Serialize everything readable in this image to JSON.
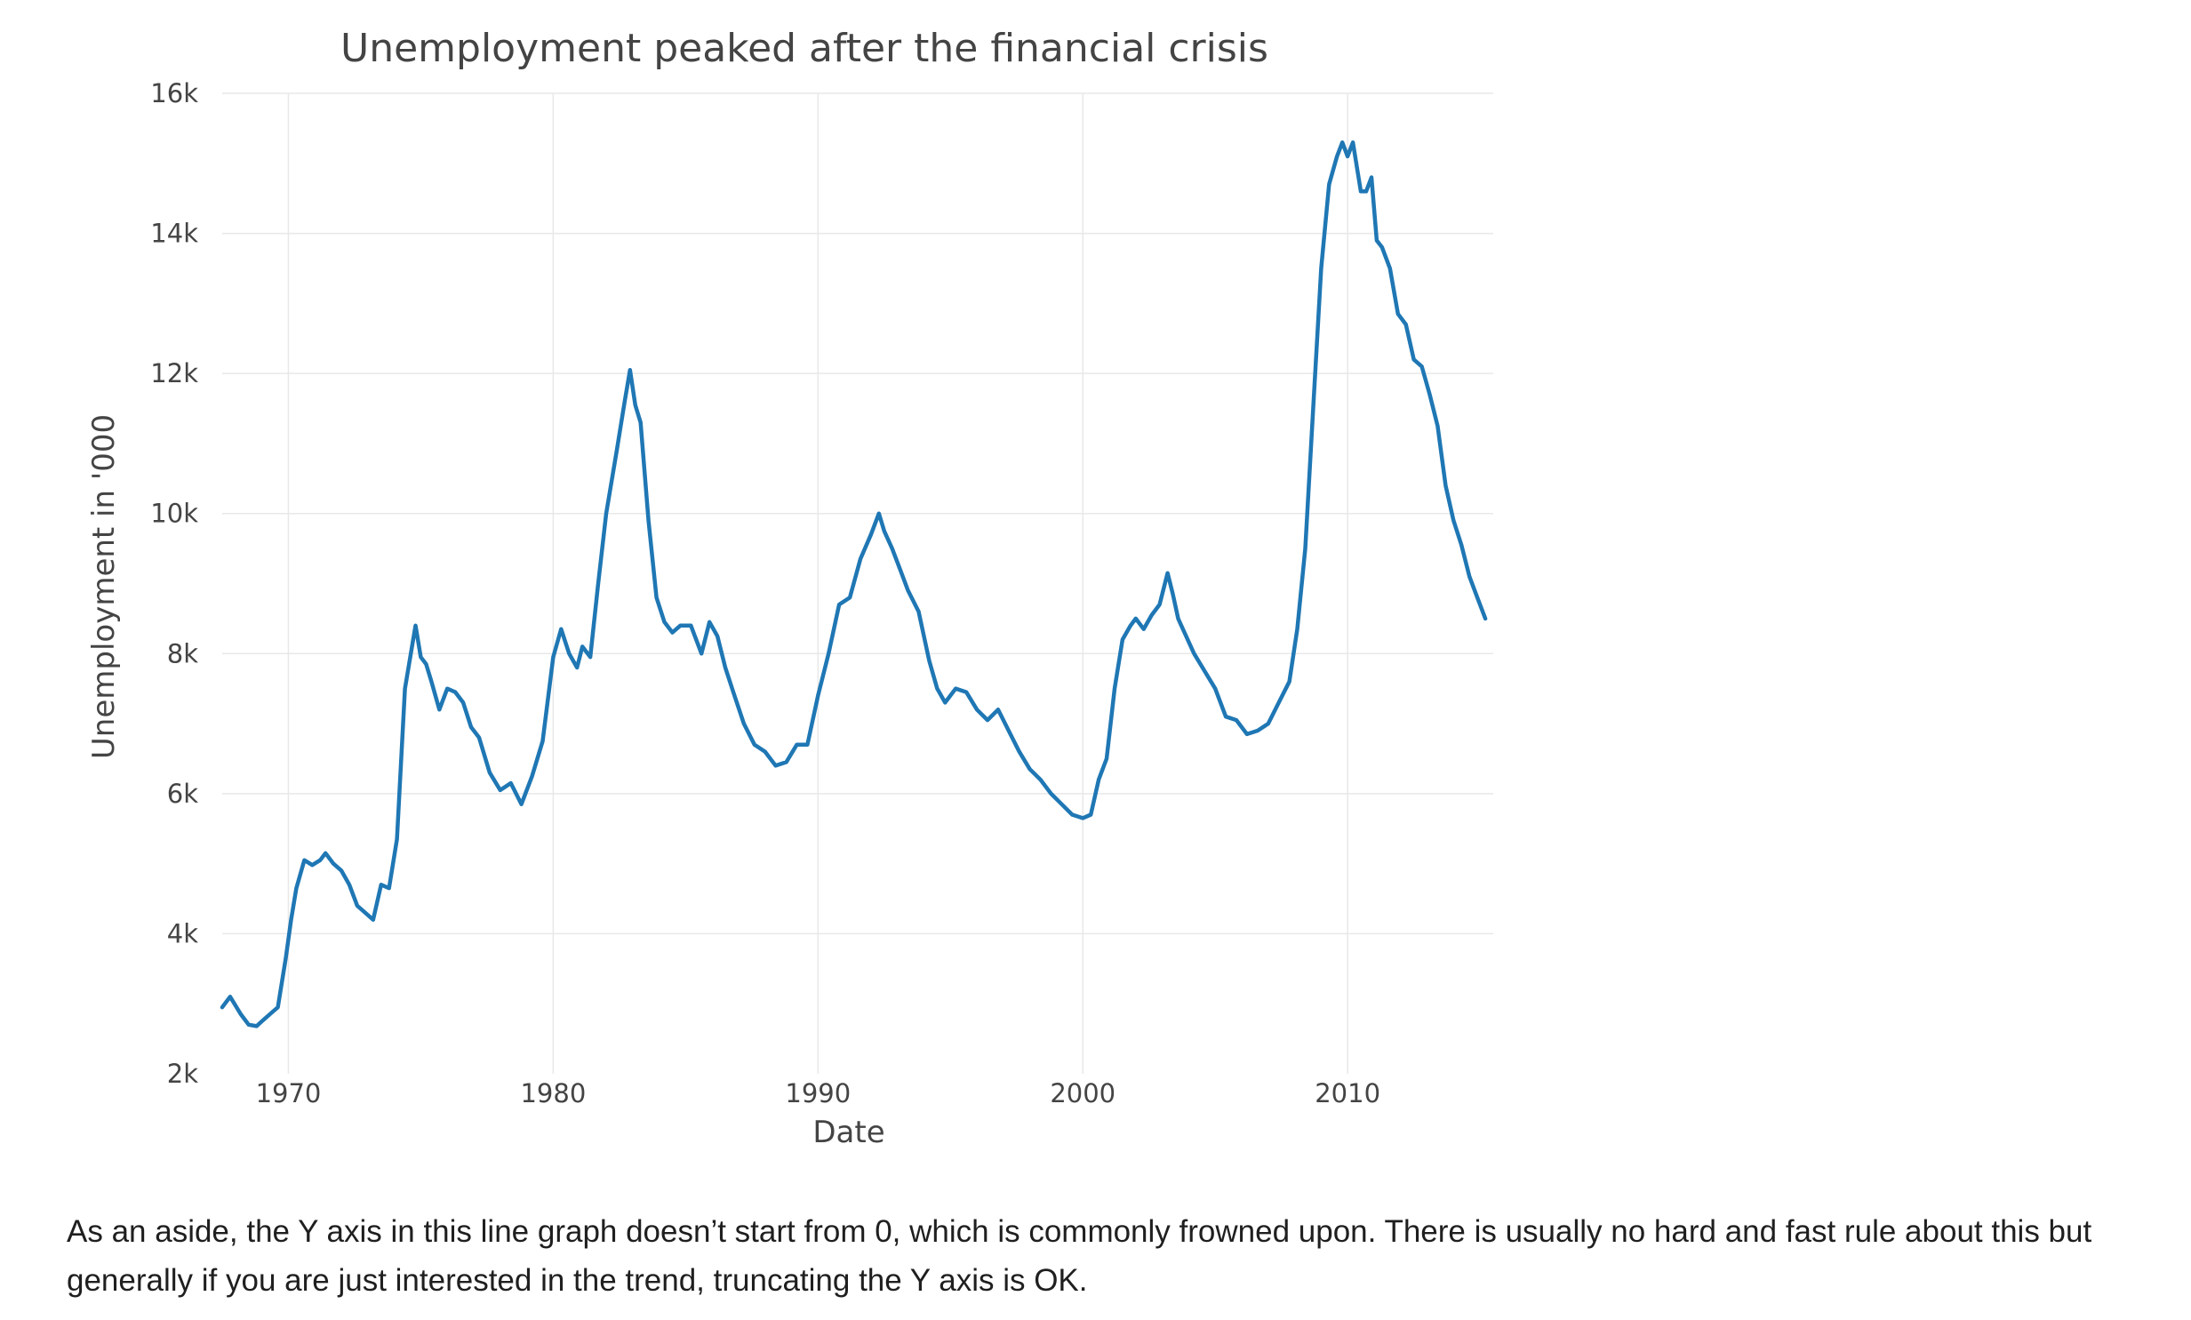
{
  "aside_text": "As an aside, the Y axis in this line graph doesn’t start from 0, which is commonly frowned upon. There is usually no hard and fast rule about this but generally if you are just interested in the trend, truncating the Y axis is OK.",
  "chart_data": {
    "type": "line",
    "title": "Unemployment peaked after the financial crisis",
    "xlabel": "Date",
    "ylabel": "Unemployment in '000",
    "xlim": [
      1967.5,
      2015.5
    ],
    "ylim": [
      2000,
      16000
    ],
    "xticks": [
      1970,
      1980,
      1990,
      2000,
      2010
    ],
    "xtick_labels": [
      "1970",
      "1980",
      "1990",
      "2000",
      "2010"
    ],
    "yticks": [
      2000,
      4000,
      6000,
      8000,
      10000,
      12000,
      14000,
      16000
    ],
    "ytick_labels": [
      "2k",
      "4k",
      "6k",
      "8k",
      "10k",
      "12k",
      "14k",
      "16k"
    ],
    "grid": true,
    "legend": "none",
    "line_color": "#1f77b4",
    "series": [
      {
        "x": [
          1967.5,
          1967.8,
          1968.2,
          1968.5,
          1968.8,
          1969.0,
          1969.3,
          1969.6,
          1969.9,
          1970.1,
          1970.3,
          1970.6,
          1970.9,
          1971.2,
          1971.4,
          1971.7,
          1972.0,
          1972.3,
          1972.6,
          1972.9,
          1973.2,
          1973.5,
          1973.8,
          1974.1,
          1974.4,
          1974.8,
          1975.0,
          1975.2,
          1975.4,
          1975.7,
          1976.0,
          1976.3,
          1976.6,
          1976.9,
          1977.2,
          1977.6,
          1978.0,
          1978.4,
          1978.8,
          1979.2,
          1979.6,
          1980.0,
          1980.3,
          1980.6,
          1980.9,
          1981.1,
          1981.4,
          1981.7,
          1982.0,
          1982.4,
          1982.7,
          1982.9,
          1983.1,
          1983.3,
          1983.6,
          1983.9,
          1984.2,
          1984.5,
          1984.8,
          1985.2,
          1985.6,
          1985.9,
          1986.2,
          1986.5,
          1986.8,
          1987.2,
          1987.6,
          1988.0,
          1988.4,
          1988.8,
          1989.2,
          1989.6,
          1990.0,
          1990.4,
          1990.8,
          1991.2,
          1991.6,
          1992.0,
          1992.3,
          1992.5,
          1992.8,
          1993.1,
          1993.4,
          1993.8,
          1994.2,
          1994.5,
          1994.8,
          1995.2,
          1995.6,
          1996.0,
          1996.4,
          1996.8,
          1997.2,
          1997.6,
          1998.0,
          1998.4,
          1998.8,
          1999.2,
          1999.6,
          2000.0,
          2000.3,
          2000.6,
          2000.9,
          2001.2,
          2001.5,
          2001.8,
          2002.0,
          2002.3,
          2002.6,
          2002.9,
          2003.2,
          2003.4,
          2003.6,
          2003.9,
          2004.2,
          2004.6,
          2005.0,
          2005.4,
          2005.8,
          2006.2,
          2006.6,
          2007.0,
          2007.4,
          2007.8,
          2008.1,
          2008.4,
          2008.7,
          2009.0,
          2009.3,
          2009.6,
          2009.8,
          2010.0,
          2010.2,
          2010.5,
          2010.7,
          2010.9,
          2011.1,
          2011.3,
          2011.6,
          2011.9,
          2012.2,
          2012.5,
          2012.8,
          2013.1,
          2013.4,
          2013.7,
          2014.0,
          2014.3,
          2014.6,
          2014.9,
          2015.2
        ],
        "y": [
          2950,
          3100,
          2850,
          2700,
          2680,
          2750,
          2850,
          2950,
          3650,
          4200,
          4650,
          5050,
          4980,
          5050,
          5150,
          5000,
          4900,
          4700,
          4400,
          4300,
          4200,
          4700,
          4650,
          5350,
          7500,
          8400,
          7950,
          7850,
          7600,
          7200,
          7500,
          7450,
          7300,
          6950,
          6800,
          6300,
          6050,
          6150,
          5850,
          6250,
          6750,
          7950,
          8350,
          8000,
          7800,
          8100,
          7950,
          9000,
          10000,
          10900,
          11600,
          12050,
          11550,
          11300,
          9900,
          8800,
          8450,
          8300,
          8400,
          8400,
          8000,
          8450,
          8250,
          7800,
          7450,
          7000,
          6700,
          6600,
          6400,
          6450,
          6700,
          6700,
          7400,
          8000,
          8700,
          8800,
          9350,
          9700,
          10000,
          9750,
          9500,
          9200,
          8900,
          8600,
          7900,
          7500,
          7300,
          7500,
          7450,
          7200,
          7050,
          7200,
          6900,
          6600,
          6350,
          6200,
          6000,
          5850,
          5700,
          5650,
          5700,
          6200,
          6500,
          7500,
          8200,
          8400,
          8500,
          8350,
          8550,
          8700,
          9150,
          8850,
          8500,
          8250,
          8000,
          7750,
          7500,
          7100,
          7050,
          6850,
          6900,
          7000,
          7300,
          7600,
          8350,
          9500,
          11500,
          13500,
          14700,
          15100,
          15300,
          15100,
          15300,
          14600,
          14600,
          14800,
          13900,
          13800,
          13500,
          12850,
          12700,
          12200,
          12100,
          11700,
          11250,
          10400,
          9900,
          9550,
          9100,
          8800,
          8500
        ]
      }
    ]
  }
}
